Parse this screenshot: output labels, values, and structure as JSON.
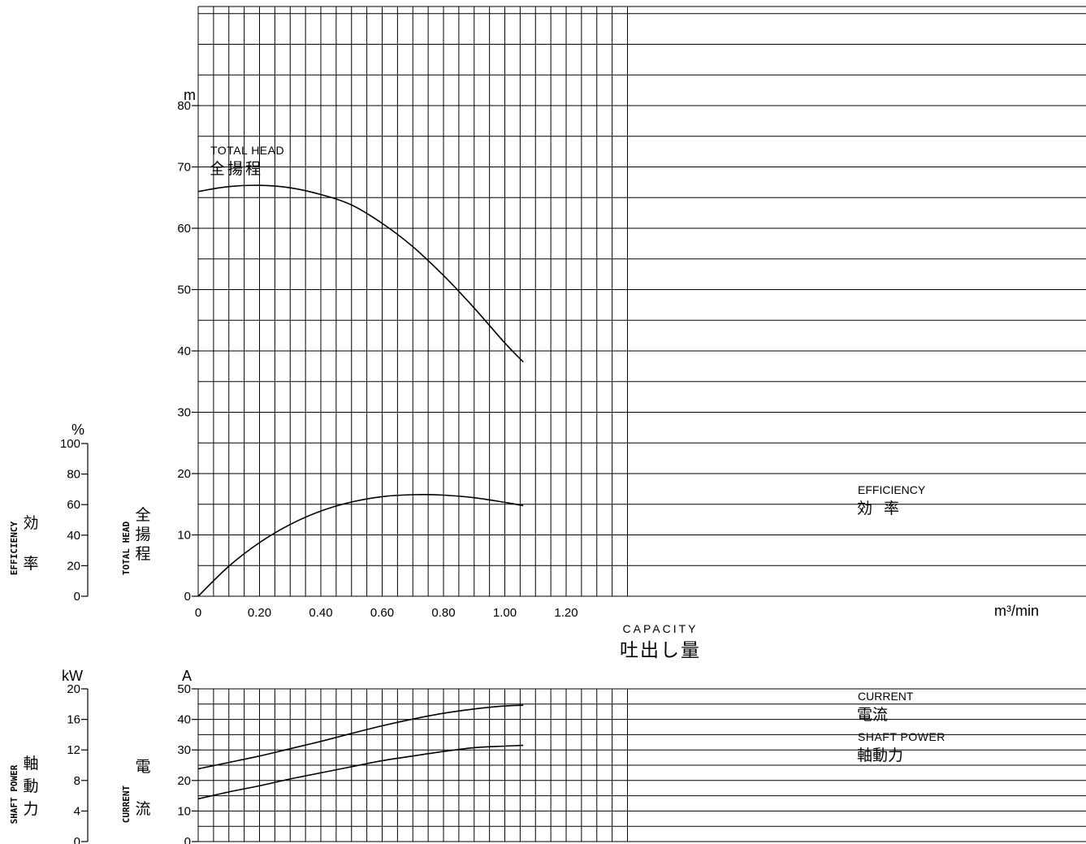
{
  "chart_data": [
    {
      "type": "line",
      "title": "",
      "xlabel": "CAPACITY",
      "xlabel_jp": "吐出し量",
      "xunit": "m³/min",
      "xlim": [
        0,
        1.44
      ],
      "x_ticks": [
        "0",
        "0.20",
        "0.40",
        "0.60",
        "0.80",
        "1.00",
        "1.20"
      ],
      "grid": true,
      "axes": [
        {
          "id": "head",
          "unit": "m",
          "label": "TOTAL HEAD",
          "label_jp": "全揚程",
          "ylim": [
            0,
            80
          ],
          "ticks": [
            "0",
            "10",
            "20",
            "30",
            "40",
            "50",
            "60",
            "70",
            "80"
          ]
        },
        {
          "id": "efficiency",
          "unit": "%",
          "label": "EFFICIENCY",
          "label_jp": "効率",
          "ylim": [
            0,
            100
          ],
          "ticks": [
            "0",
            "20",
            "40",
            "60",
            "80",
            "100"
          ]
        }
      ],
      "series": [
        {
          "name": "TOTAL HEAD",
          "name_jp": "全揚程",
          "axis": "head",
          "x": [
            0,
            0.1,
            0.2,
            0.3,
            0.4,
            0.5,
            0.6,
            0.7,
            0.8,
            0.9,
            1.0,
            1.06
          ],
          "y": [
            66.0,
            66.8,
            67.0,
            66.6,
            65.5,
            63.8,
            60.8,
            57.0,
            52.3,
            47.0,
            41.3,
            38.2
          ]
        },
        {
          "name": "EFFICIENCY",
          "name_jp": "効率",
          "axis": "efficiency",
          "x": [
            0,
            0.1,
            0.2,
            0.3,
            0.4,
            0.5,
            0.6,
            0.7,
            0.8,
            0.9,
            1.0,
            1.06
          ],
          "y": [
            0,
            19.7,
            35.1,
            47.0,
            55.8,
            61.7,
            65.2,
            66.5,
            66.2,
            64.5,
            61.5,
            59.3
          ]
        }
      ]
    },
    {
      "type": "line",
      "title": "",
      "xlim": [
        0,
        1.44
      ],
      "grid": true,
      "axes": [
        {
          "id": "current",
          "unit": "A",
          "label": "CURRENT",
          "label_jp": "電流",
          "ylim": [
            0,
            50
          ],
          "ticks": [
            "0",
            "10",
            "20",
            "30",
            "40",
            "50"
          ]
        },
        {
          "id": "power",
          "unit": "kW",
          "label": "SHAFT POWER",
          "label_jp": "軸動力",
          "ylim": [
            0,
            20
          ],
          "ticks": [
            "0",
            "4",
            "8",
            "12",
            "16",
            "20"
          ]
        }
      ],
      "series": [
        {
          "name": "CURRENT",
          "name_jp": "電流",
          "axis": "current",
          "x": [
            0,
            0.1,
            0.2,
            0.3,
            0.4,
            0.5,
            0.6,
            0.7,
            0.8,
            0.9,
            1.0,
            1.06
          ],
          "y": [
            23.8,
            25.9,
            28.0,
            30.4,
            32.8,
            35.4,
            37.9,
            40.1,
            42.0,
            43.4,
            44.4,
            44.6
          ]
        },
        {
          "name": "SHAFT POWER",
          "name_jp": "軸動力",
          "axis": "power",
          "x": [
            0,
            0.1,
            0.2,
            0.3,
            0.4,
            0.5,
            0.6,
            0.7,
            0.8,
            0.9,
            1.0,
            1.06
          ],
          "y": [
            5.6,
            6.5,
            7.3,
            8.2,
            9.0,
            9.8,
            10.6,
            11.2,
            11.8,
            12.3,
            12.5,
            12.6
          ]
        }
      ]
    }
  ]
}
